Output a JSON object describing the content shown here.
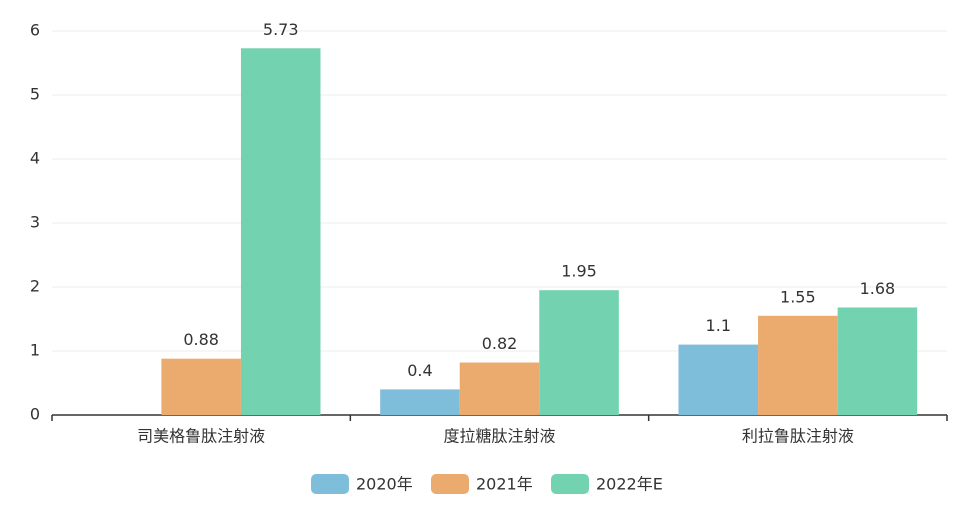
{
  "chart_data": {
    "type": "bar",
    "categories": [
      "司美格鲁肽注射液",
      "度拉糖肽注射液",
      "利拉鲁肽注射液"
    ],
    "series": [
      {
        "name": "2020年",
        "color": "#7fbedb",
        "values": [
          null,
          0.4,
          1.1
        ]
      },
      {
        "name": "2021年",
        "color": "#ebab6f",
        "values": [
          0.88,
          0.82,
          1.55
        ]
      },
      {
        "name": "2022年E",
        "color": "#73d2b0",
        "values": [
          5.73,
          1.95,
          1.68
        ]
      }
    ],
    "ylim": [
      0,
      6
    ],
    "yticks": [
      0,
      1,
      2,
      3,
      4,
      5,
      6
    ],
    "grid": true,
    "legend": "bottom"
  }
}
